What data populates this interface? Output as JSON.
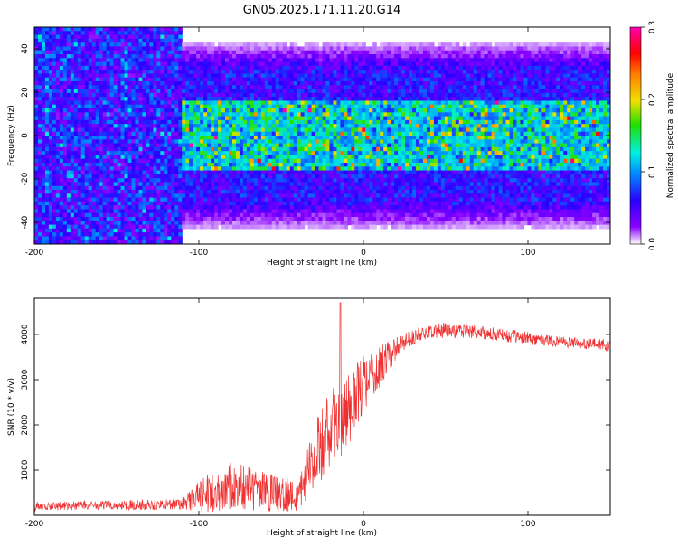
{
  "figure": {
    "title": "GN05.2025.171.11.20.G14"
  },
  "chart_data": [
    {
      "type": "heatmap",
      "xlabel": "Height of straight line (km)",
      "ylabel": "Frequency (Hz)",
      "xlim": [
        -200,
        150
      ],
      "ylim": [
        -50,
        50
      ],
      "x_ticks": [
        -200,
        -100,
        0,
        100
      ],
      "y_ticks": [
        -40,
        -20,
        0,
        20,
        40
      ],
      "colorbar": {
        "label": "Normalized spectral amplitude",
        "range": [
          0.0,
          0.3
        ],
        "ticks": [
          0.0,
          0.1,
          0.2,
          0.3
        ],
        "colors": [
          "#ffffff",
          "#8a00ff",
          "#2a00ff",
          "#0090ff",
          "#00f0e0",
          "#20e000",
          "#f0e000",
          "#ff8000",
          "#ff0000",
          "#ff00b0"
        ]
      },
      "description_bands": [
        {
          "x_range": [
            -200,
            -110
          ],
          "energy_freq_range": [
            -50,
            50
          ],
          "mean_amplitude": 0.06
        },
        {
          "x_range": [
            -110,
            150
          ],
          "energy_freq_range": [
            -30,
            30
          ],
          "mean_amplitude": 0.09
        },
        {
          "x_range": [
            -100,
            150
          ],
          "peak_freq_range": [
            -15,
            15
          ],
          "mean_amplitude": 0.14
        }
      ]
    },
    {
      "type": "line",
      "xlabel": "Height of straight line (km)",
      "ylabel": "SNR (10 * v/v)",
      "xlim": [
        -200,
        150
      ],
      "ylim": [
        0,
        4800
      ],
      "x_ticks": [
        -200,
        -100,
        0,
        100
      ],
      "y_ticks": [
        1000,
        2000,
        3000,
        4000
      ],
      "series": [
        {
          "color": "#f03030",
          "x": [
            -200,
            -180,
            -160,
            -140,
            -120,
            -110,
            -100,
            -90,
            -80,
            -70,
            -60,
            -50,
            -40,
            -35,
            -30,
            -25,
            -20,
            -15,
            -10,
            -5,
            0,
            5,
            10,
            15,
            20,
            25,
            30,
            40,
            50,
            60,
            70,
            80,
            90,
            100,
            110,
            120,
            130,
            140,
            150
          ],
          "values": [
            200,
            210,
            220,
            230,
            240,
            260,
            400,
            550,
            650,
            600,
            500,
            450,
            400,
            900,
            1300,
            1600,
            1900,
            2100,
            2300,
            2600,
            2900,
            3100,
            3300,
            3500,
            3700,
            3850,
            3950,
            4050,
            4100,
            4080,
            4050,
            4000,
            3960,
            3920,
            3880,
            3850,
            3820,
            3790,
            3750
          ],
          "noise_amplitude": [
            100,
            100,
            100,
            110,
            120,
            130,
            350,
            500,
            550,
            500,
            450,
            400,
            380,
            600,
            700,
            800,
            900,
            900,
            850,
            750,
            650,
            550,
            450,
            350,
            250,
            200,
            180,
            170,
            170,
            160,
            150,
            150,
            140,
            140,
            140,
            130,
            130,
            130,
            130
          ]
        }
      ]
    }
  ]
}
